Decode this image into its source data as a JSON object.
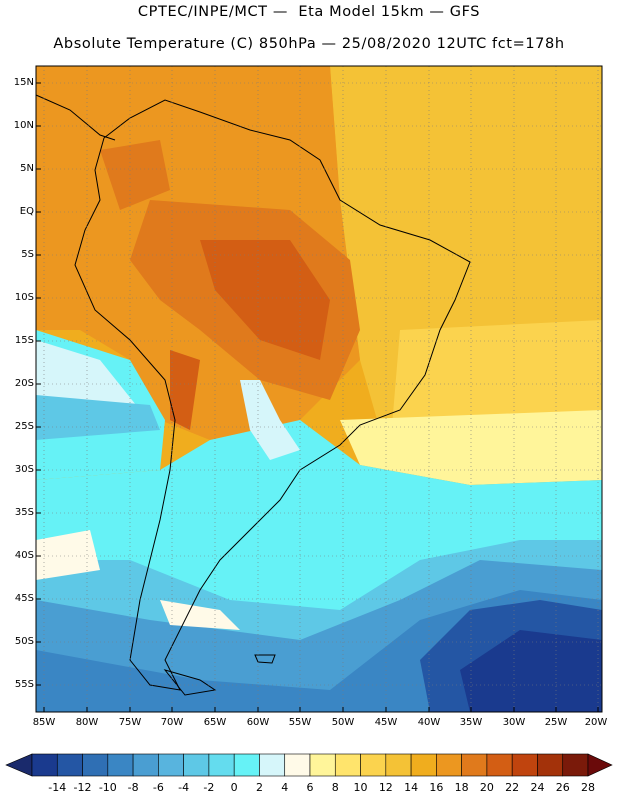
{
  "header": {
    "line1": "CPTEC/INPE/MCT —  Eta Model 15km — GFS",
    "line2": "Absolute Temperature (C) 850hPa — 25/08/2020 12UTC fct=178h"
  },
  "map": {
    "lat_labels": [
      "15N",
      "10N",
      "5N",
      "EQ",
      "5S",
      "10S",
      "15S",
      "20S",
      "25S",
      "30S",
      "35S",
      "40S",
      "45S",
      "50S",
      "55S"
    ],
    "lon_labels": [
      "85W",
      "80W",
      "75W",
      "70W",
      "65W",
      "60W",
      "55W",
      "50W",
      "45W",
      "40W",
      "35W",
      "30W",
      "25W",
      "20W"
    ],
    "grid": "dotted"
  },
  "colorbar": {
    "labels": [
      "-14",
      "-12",
      "-10",
      "-8",
      "-6",
      "-4",
      "-2",
      "0",
      "2",
      "4",
      "6",
      "8",
      "10",
      "12",
      "14",
      "16",
      "18",
      "20",
      "22",
      "24",
      "26",
      "28"
    ],
    "colors": [
      "#1a3a8e",
      "#2456a4",
      "#2f6fb4",
      "#3a86c4",
      "#4a9ed2",
      "#58b4de",
      "#5ec8e6",
      "#64dcee",
      "#66f2f6",
      "#d6f6fa",
      "#fffae8",
      "#fff59a",
      "#ffe46c",
      "#fbd34e",
      "#f4c236",
      "#f0ad1e",
      "#ec9720",
      "#e07a1c",
      "#d35e14",
      "#c0440e",
      "#a3320a",
      "#7a1a0a"
    ],
    "arrow_left_color": "#1a2a6c",
    "arrow_right_color": "#6a0a0a"
  }
}
